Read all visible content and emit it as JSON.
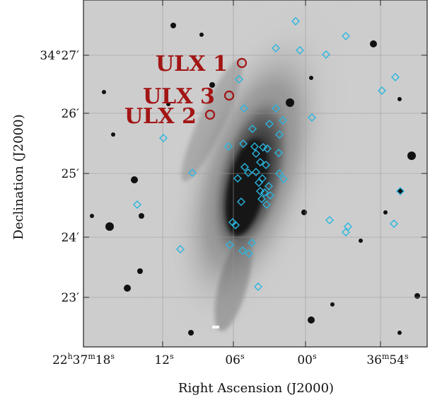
{
  "axes": {
    "x_title": "Right Ascension (J2000)",
    "y_title": "Declination (J2000)",
    "x_ticks": [
      {
        "main": "22",
        "sup1": "h",
        "mid": "37",
        "sup2": "m",
        "end": "18",
        "sup3": "s"
      },
      {
        "main": "12",
        "sup1": "s"
      },
      {
        "main": "06",
        "sup1": "s"
      },
      {
        "main": "00",
        "sup1": "s"
      },
      {
        "main": "36",
        "sup1": "m",
        "end": "54",
        "sup3": "s"
      }
    ],
    "y_ticks": [
      {
        "main": "34°27",
        "prime": "′"
      },
      {
        "main": "26",
        "prime": "′"
      },
      {
        "main": "25",
        "prime": "′"
      },
      {
        "main": "24",
        "prime": "′"
      },
      {
        "main": "23",
        "prime": "′"
      }
    ]
  },
  "sources": [
    {
      "label": "ULX 1",
      "color": "#a31515"
    },
    {
      "label": "ULX 3",
      "color": "#a31515"
    },
    {
      "label": "ULX 2",
      "color": "#a31515"
    }
  ],
  "marker_color": "#29b6e0",
  "image": {
    "style": "grayscale optical image of spiral galaxy with overlaid diamond markers"
  }
}
